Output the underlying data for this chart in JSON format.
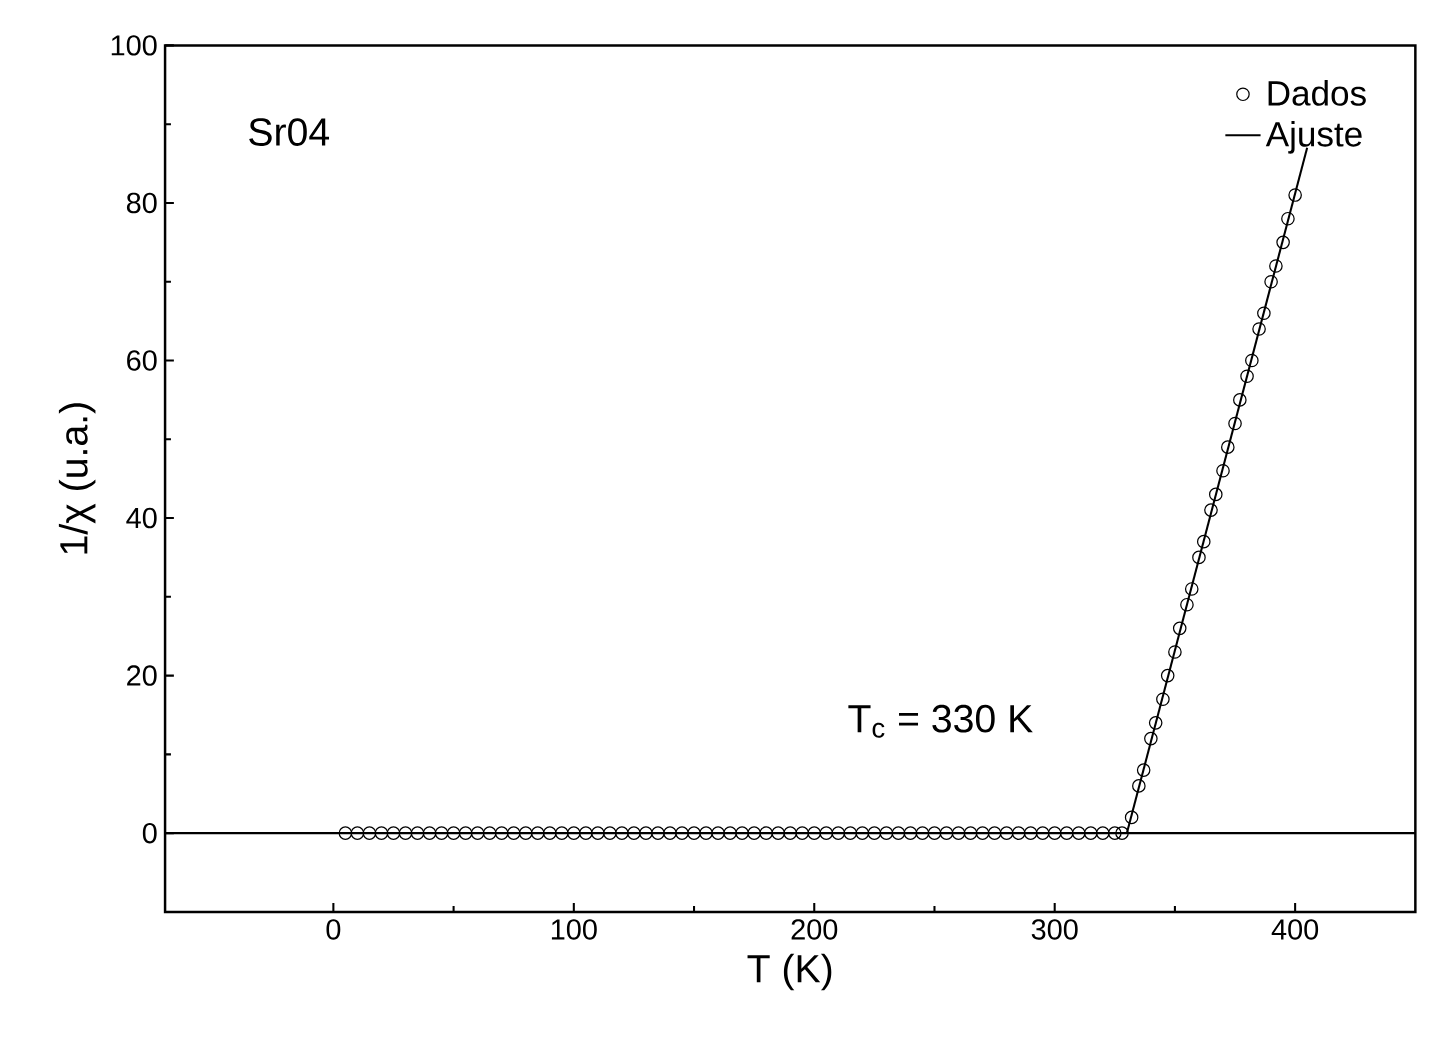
{
  "chart_data": {
    "type": "scatter",
    "xlabel": "T (K)",
    "ylabel": "1/χ (u.a.)",
    "xlim": [
      -70,
      450
    ],
    "ylim": [
      -10,
      100
    ],
    "xticks": [
      0,
      100,
      200,
      300,
      400
    ],
    "yticks": [
      0,
      20,
      40,
      60,
      80,
      100
    ],
    "legend": "top right",
    "grid": false,
    "ref_lines": [
      {
        "axis": "y",
        "value": 0,
        "color": "#000000",
        "line_style": "solid"
      }
    ],
    "annotations": [
      "Sr04",
      "T$_{c}$ = 330 K"
    ],
    "series": [
      {
        "name": "Dados",
        "marker": "circle",
        "color": "#000000",
        "x": [
          5,
          10,
          15,
          20,
          25,
          30,
          35,
          40,
          45,
          50,
          55,
          60,
          65,
          70,
          75,
          80,
          85,
          90,
          95,
          100,
          105,
          110,
          115,
          120,
          125,
          130,
          135,
          140,
          145,
          150,
          155,
          160,
          165,
          170,
          175,
          180,
          185,
          190,
          195,
          200,
          205,
          210,
          215,
          220,
          225,
          230,
          235,
          240,
          245,
          250,
          255,
          260,
          265,
          270,
          275,
          280,
          285,
          290,
          295,
          300,
          305,
          310,
          315,
          320,
          325,
          328,
          332,
          335,
          337,
          340,
          342,
          345,
          347,
          350,
          352,
          355,
          357,
          360,
          362,
          365,
          367,
          370,
          372,
          375,
          377,
          380,
          382,
          385,
          387,
          390,
          392,
          395,
          397,
          400
        ],
        "values": [
          0,
          0,
          0,
          0,
          0,
          0,
          0,
          0,
          0,
          0,
          0,
          0,
          0,
          0,
          0,
          0,
          0,
          0,
          0,
          0,
          0,
          0,
          0,
          0,
          0,
          0,
          0,
          0,
          0,
          0,
          0,
          0,
          0,
          0,
          0,
          0,
          0,
          0,
          0,
          0,
          0,
          0,
          0,
          0,
          0,
          0,
          0,
          0,
          0,
          0,
          0,
          0,
          0,
          0,
          0,
          0,
          0,
          0,
          0,
          0,
          0,
          0,
          0,
          0,
          0,
          0,
          2,
          6,
          8,
          12,
          14,
          17,
          20,
          23,
          26,
          29,
          31,
          35,
          37,
          41,
          43,
          46,
          49,
          52,
          55,
          58,
          60,
          64,
          66,
          70,
          72,
          75,
          78,
          81
        ]
      },
      {
        "name": "Ajuste",
        "type": "line",
        "marker": "none",
        "line_style": "solid",
        "color": "#000000",
        "x": [
          330,
          405
        ],
        "values": [
          0,
          87
        ]
      }
    ]
  }
}
